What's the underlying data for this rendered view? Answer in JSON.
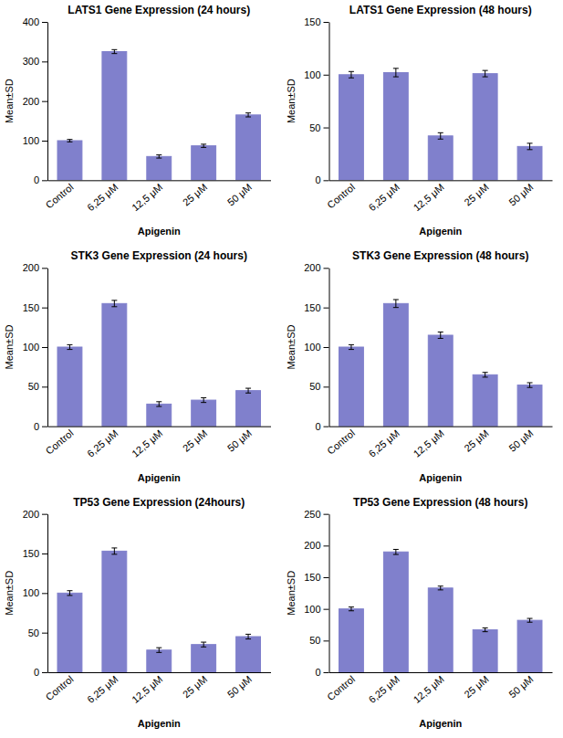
{
  "chart_data": [
    {
      "type": "bar",
      "title": "LATS1 Gene Expression (24 hours)",
      "xlabel": "Apigenin",
      "ylabel": "Mean±SD",
      "categories": [
        "Control",
        "6,25 μM",
        "12,5 μM",
        "25 μM",
        "50 μM"
      ],
      "values": [
        100,
        325,
        60,
        87,
        165
      ],
      "errors": [
        3,
        5,
        4,
        4,
        5
      ],
      "color": "#8080cc",
      "ylim": [
        0,
        400
      ],
      "yticks": [
        0,
        100,
        200,
        300,
        400
      ],
      "grid": false
    },
    {
      "type": "bar",
      "title": "LATS1 Gene Expression (48 hours)",
      "xlabel": "Apigenin",
      "ylabel": "Mean±SD",
      "categories": [
        "Control",
        "6,25 μM",
        "12,5 μM",
        "25 μM",
        "50 μM"
      ],
      "values": [
        100,
        102,
        42,
        101,
        32
      ],
      "errors": [
        3,
        4,
        3,
        3,
        3
      ],
      "color": "#8080cc",
      "ylim": [
        0,
        150
      ],
      "yticks": [
        0,
        50,
        100,
        150
      ],
      "grid": false
    },
    {
      "type": "bar",
      "title": "STK3 Gene Expression (24 hours)",
      "xlabel": "Apigenin",
      "ylabel": "Mean±SD",
      "categories": [
        "Control",
        "6,25 μM",
        "12,5 μM",
        "25 μM",
        "50 μM"
      ],
      "values": [
        100,
        155,
        28,
        33,
        45
      ],
      "errors": [
        3,
        4,
        3,
        3,
        3
      ],
      "color": "#8080cc",
      "ylim": [
        0,
        200
      ],
      "yticks": [
        0,
        50,
        100,
        150,
        200
      ],
      "grid": false
    },
    {
      "type": "bar",
      "title": "STK3 Gene Expression (48 hours)",
      "xlabel": "Apigenin",
      "ylabel": "Mean±SD",
      "categories": [
        "Control",
        "6,25 μM",
        "12,5 μM",
        "25 μM",
        "50 μM"
      ],
      "values": [
        100,
        155,
        115,
        65,
        52
      ],
      "errors": [
        3,
        5,
        4,
        3,
        3
      ],
      "color": "#8080cc",
      "ylim": [
        0,
        200
      ],
      "yticks": [
        0,
        50,
        100,
        150,
        200
      ],
      "grid": false
    },
    {
      "type": "bar",
      "title": "TP53 Gene Expression (24hours)",
      "xlabel": "Apigenin",
      "ylabel": "Mean±SD",
      "categories": [
        "Control",
        "6,25 μM",
        "12,5 μM",
        "25 μM",
        "50 μM"
      ],
      "values": [
        100,
        153,
        28,
        35,
        45
      ],
      "errors": [
        3,
        4,
        3,
        3,
        3
      ],
      "color": "#8080cc",
      "ylim": [
        0,
        200
      ],
      "yticks": [
        0,
        50,
        100,
        150,
        200
      ],
      "grid": false
    },
    {
      "type": "bar",
      "title": "TP53 Gene Expression (48 hours)",
      "xlabel": "Apigenin",
      "ylabel": "Mean±SD",
      "categories": [
        "Control",
        "6,25 μM",
        "12,5 μM",
        "25 μM",
        "50 μM"
      ],
      "values": [
        100,
        190,
        133,
        67,
        82
      ],
      "errors": [
        3,
        4,
        3,
        3,
        3
      ],
      "color": "#8080cc",
      "ylim": [
        0,
        250
      ],
      "yticks": [
        0,
        50,
        100,
        150,
        200,
        250
      ],
      "grid": false
    }
  ]
}
